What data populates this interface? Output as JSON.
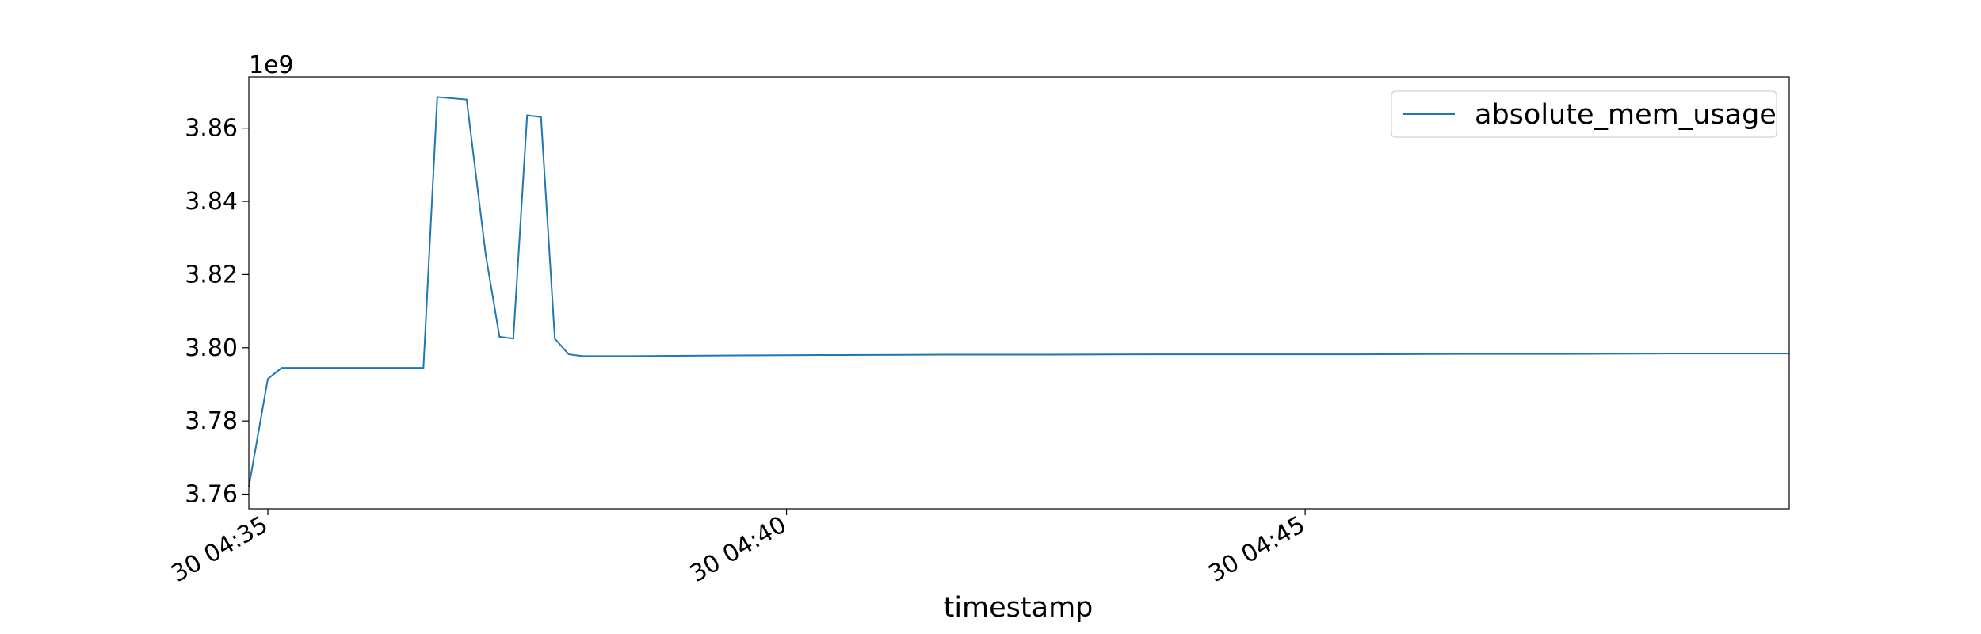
{
  "chart_data": {
    "type": "line",
    "xlabel": "timestamp",
    "ylabel": "",
    "y_offset_label": "1e9",
    "ylim": [
      3.756,
      3.874
    ],
    "xlim": [
      "30 04:34:49",
      "30 04:49:40"
    ],
    "y_ticks": [
      3.76,
      3.78,
      3.8,
      3.82,
      3.84,
      3.86
    ],
    "y_tick_labels": [
      "3.76",
      "3.78",
      "3.80",
      "3.82",
      "3.84",
      "3.86"
    ],
    "x_ticks": [
      {
        "time": "30 04:35:00",
        "label": "30 04:35"
      },
      {
        "time": "30 04:40:00",
        "label": "30 04:40"
      },
      {
        "time": "30 04:45:00",
        "label": "30 04:45"
      }
    ],
    "grid": false,
    "legend_position": "top-right",
    "color": "#1f77b4",
    "series": [
      {
        "name": "absolute_mem_usage",
        "x": [
          "30 04:34:49",
          "30 04:35:00",
          "30 04:35:08",
          "30 04:36:30",
          "30 04:36:38",
          "30 04:36:55",
          "30 04:37:06",
          "30 04:37:14",
          "30 04:37:22",
          "30 04:37:30",
          "30 04:37:38",
          "30 04:37:46",
          "30 04:37:54",
          "30 04:38:02",
          "30 04:38:30",
          "30 04:39:30",
          "30 04:40:20",
          "30 04:40:30",
          "30 04:41:30",
          "30 04:42:30",
          "30 04:43:30",
          "30 04:44:30",
          "30 04:45:30",
          "30 04:46:30",
          "30 04:47:30",
          "30 04:48:30",
          "30 04:49:40"
        ],
        "y": [
          3.762,
          3.7915,
          3.7945,
          3.7945,
          3.8685,
          3.8678,
          3.8255,
          3.803,
          3.8025,
          3.8635,
          3.863,
          3.8025,
          3.7982,
          3.7977,
          3.7977,
          3.7979,
          3.798,
          3.798,
          3.7981,
          3.7981,
          3.7982,
          3.7982,
          3.7982,
          3.7983,
          3.7983,
          3.7984,
          3.7984
        ]
      }
    ]
  }
}
